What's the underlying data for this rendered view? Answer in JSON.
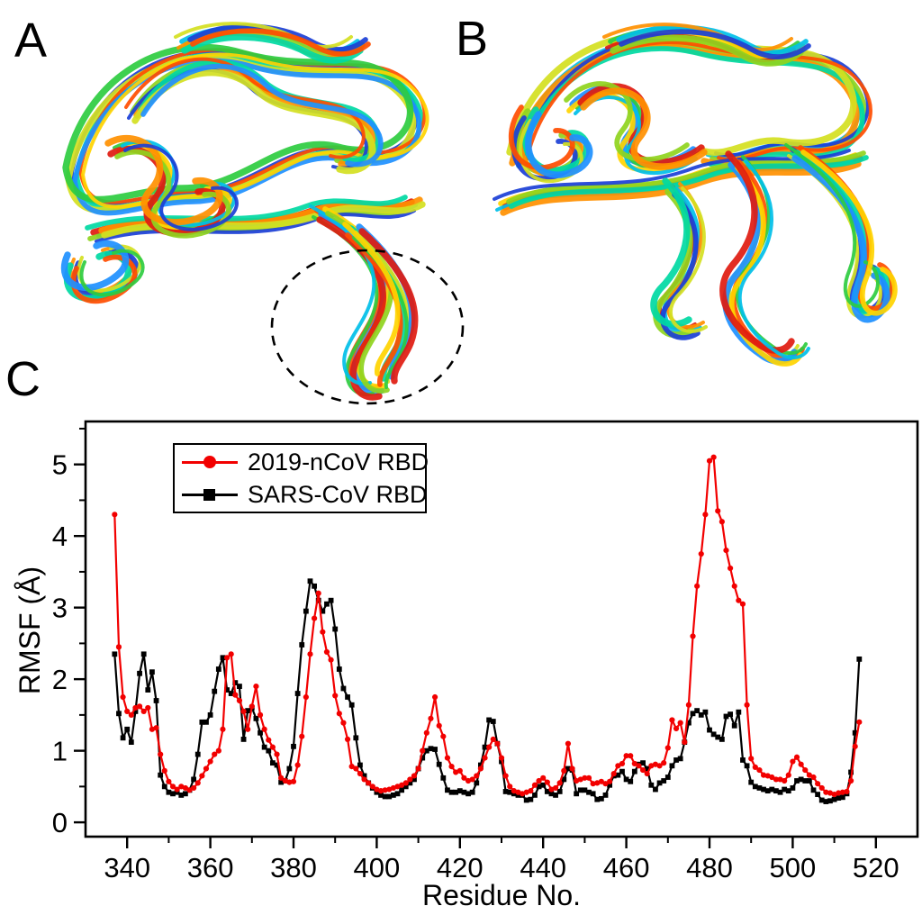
{
  "figure": {
    "labels": {
      "a": "A",
      "b": "B",
      "c": "C"
    },
    "panel_a": {
      "description": "superimposed MD ensemble of 2019-nCoV RBD cartoon structures",
      "highlight": "dashed-ellipse-around-flexible-loop"
    },
    "panel_b": {
      "description": "superimposed MD ensemble of SARS-CoV RBD cartoon structures"
    }
  },
  "structure_palette": [
    "#1b3fd6",
    "#1e90ff",
    "#00bfe8",
    "#00d9a3",
    "#2ecc40",
    "#8fd41e",
    "#d4e021",
    "#ffd400",
    "#ff9000",
    "#ff4d00",
    "#e01b10"
  ],
  "chart_data": {
    "type": "line",
    "title": "",
    "xlabel": "Residue No.",
    "ylabel": "RMSF (Å)",
    "xlim": [
      330,
      530
    ],
    "ylim": [
      -0.2,
      5.6
    ],
    "x_ticks": [
      340,
      360,
      380,
      400,
      420,
      440,
      460,
      480,
      500,
      520
    ],
    "y_ticks": [
      0,
      1,
      2,
      3,
      4,
      5
    ],
    "x_minor_step": 10,
    "y_minor_step": 0.5,
    "grid": false,
    "legend_position": "top-left",
    "x_start": 337,
    "x_step": 1,
    "series": [
      {
        "name": "2019-nCoV RBD",
        "color": "#f20000",
        "marker": "circle",
        "values": [
          4.3,
          2.45,
          1.75,
          1.55,
          1.5,
          1.6,
          1.62,
          1.55,
          1.6,
          1.3,
          1.32,
          0.95,
          0.72,
          0.57,
          0.5,
          0.46,
          0.5,
          0.48,
          0.45,
          0.48,
          0.55,
          0.65,
          0.75,
          0.85,
          0.95,
          1.0,
          1.3,
          2.3,
          2.35,
          1.78,
          1.7,
          1.55,
          1.3,
          1.62,
          1.9,
          1.5,
          1.3,
          1.15,
          1.05,
          0.95,
          0.62,
          0.58,
          0.56,
          0.57,
          0.8,
          1.2,
          1.75,
          2.35,
          2.85,
          3.2,
          2.66,
          2.38,
          2.27,
          1.77,
          1.52,
          1.39,
          1.16,
          0.78,
          0.75,
          0.68,
          0.6,
          0.55,
          0.5,
          0.46,
          0.44,
          0.45,
          0.46,
          0.48,
          0.5,
          0.52,
          0.55,
          0.6,
          0.65,
          0.75,
          1.0,
          1.25,
          1.45,
          1.75,
          1.35,
          1.2,
          0.9,
          0.78,
          0.7,
          0.72,
          0.62,
          0.58,
          0.6,
          0.65,
          0.75,
          0.9,
          1.05,
          1.16,
          1.1,
          0.9,
          0.65,
          0.5,
          0.44,
          0.42,
          0.4,
          0.42,
          0.44,
          0.52,
          0.58,
          0.62,
          0.56,
          0.46,
          0.48,
          0.55,
          0.72,
          1.1,
          0.75,
          0.58,
          0.6,
          0.62,
          0.62,
          0.54,
          0.55,
          0.57,
          0.54,
          0.57,
          0.68,
          0.79,
          0.82,
          0.93,
          0.93,
          0.82,
          0.79,
          0.73,
          0.68,
          0.79,
          0.81,
          0.79,
          0.83,
          1.04,
          1.43,
          1.31,
          1.39,
          1.12,
          1.64,
          2.6,
          3.3,
          3.75,
          4.3,
          5.05,
          5.1,
          4.35,
          4.2,
          3.8,
          3.55,
          3.3,
          3.1,
          3.05,
          1.64,
          0.89,
          0.77,
          0.73,
          0.66,
          0.65,
          0.63,
          0.6,
          0.6,
          0.58,
          0.66,
          0.85,
          0.91,
          0.81,
          0.73,
          0.66,
          0.63,
          0.54,
          0.48,
          0.42,
          0.41,
          0.39,
          0.41,
          0.42,
          0.43,
          0.58,
          1.06,
          1.4
        ]
      },
      {
        "name": "SARS-CoV RBD",
        "color": "#000000",
        "marker": "square",
        "values": [
          2.35,
          1.52,
          1.18,
          1.3,
          1.12,
          1.55,
          2.08,
          2.35,
          1.85,
          2.1,
          1.7,
          0.66,
          0.5,
          0.42,
          0.4,
          0.42,
          0.38,
          0.4,
          0.45,
          0.6,
          0.95,
          1.4,
          1.4,
          1.5,
          1.83,
          2.14,
          2.3,
          1.85,
          1.8,
          1.95,
          1.9,
          1.16,
          1.56,
          1.6,
          1.45,
          1.25,
          1.05,
          1.0,
          0.83,
          0.8,
          0.56,
          0.58,
          0.75,
          1.06,
          1.8,
          2.48,
          2.95,
          3.37,
          3.3,
          3.1,
          2.95,
          3.05,
          3.1,
          2.7,
          2.14,
          1.87,
          1.75,
          1.64,
          1.18,
          0.8,
          0.65,
          0.55,
          0.48,
          0.42,
          0.38,
          0.36,
          0.36,
          0.38,
          0.4,
          0.45,
          0.5,
          0.55,
          0.6,
          0.75,
          0.9,
          1.0,
          1.03,
          1.02,
          0.81,
          0.62,
          0.45,
          0.42,
          0.42,
          0.44,
          0.42,
          0.4,
          0.42,
          0.55,
          0.8,
          1.05,
          1.43,
          1.41,
          1.1,
          0.85,
          0.43,
          0.42,
          0.4,
          0.38,
          0.38,
          0.31,
          0.32,
          0.38,
          0.5,
          0.52,
          0.43,
          0.4,
          0.38,
          0.43,
          0.6,
          0.75,
          0.73,
          0.4,
          0.45,
          0.45,
          0.42,
          0.4,
          0.32,
          0.33,
          0.38,
          0.52,
          0.65,
          0.66,
          0.71,
          0.6,
          0.57,
          0.71,
          0.81,
          0.83,
          0.75,
          0.52,
          0.46,
          0.55,
          0.58,
          0.63,
          0.79,
          0.87,
          0.89,
          1.12,
          1.39,
          1.52,
          1.56,
          1.5,
          1.54,
          1.29,
          1.23,
          1.19,
          1.16,
          1.48,
          1.51,
          1.35,
          1.54,
          0.87,
          0.79,
          0.56,
          0.5,
          0.48,
          0.46,
          0.44,
          0.46,
          0.44,
          0.42,
          0.46,
          0.44,
          0.48,
          0.58,
          0.6,
          0.58,
          0.58,
          0.45,
          0.39,
          0.31,
          0.29,
          0.3,
          0.32,
          0.34,
          0.35,
          0.4,
          0.7,
          1.25,
          2.28
        ]
      }
    ]
  }
}
